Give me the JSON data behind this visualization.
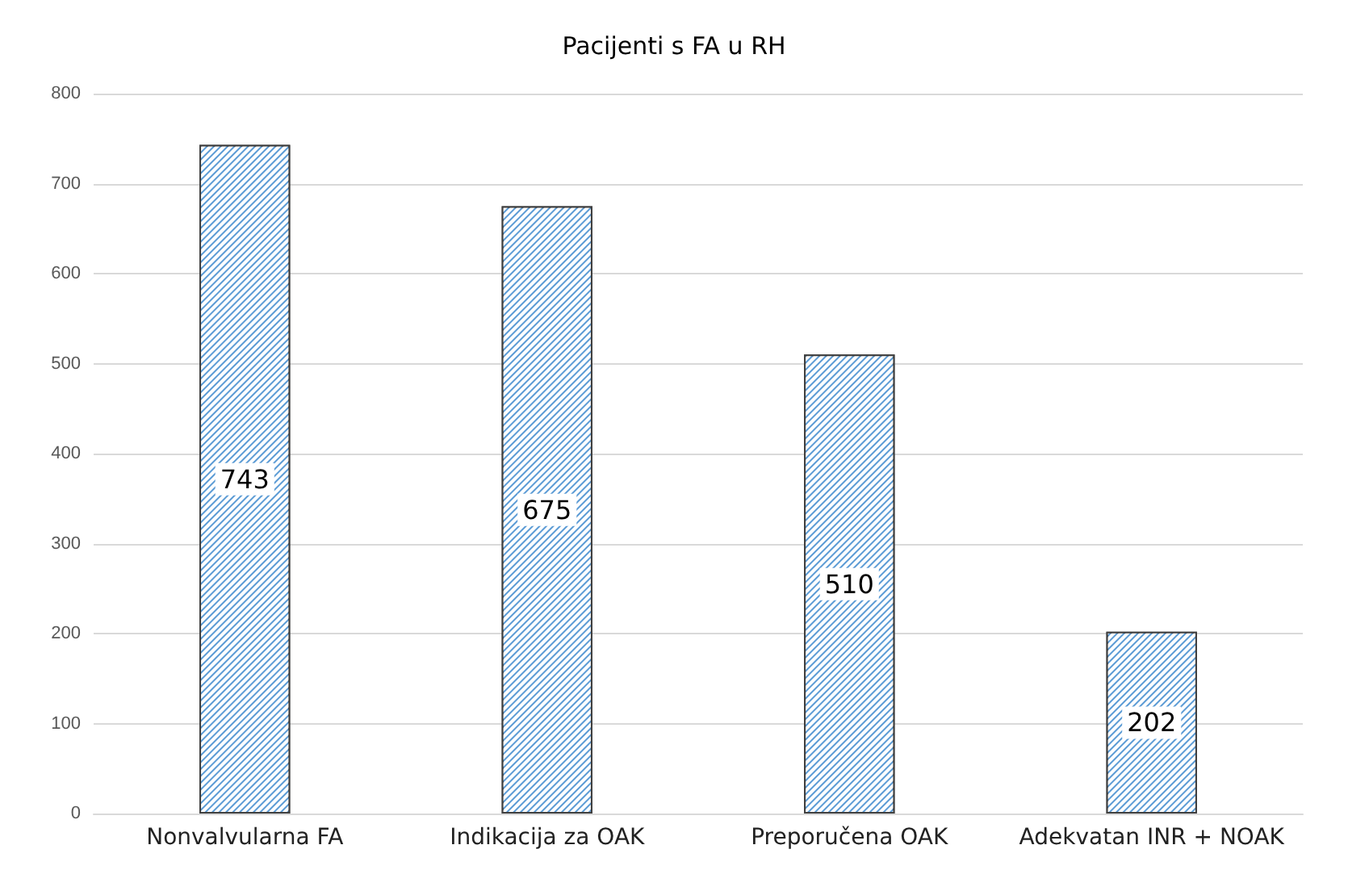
{
  "chart_data": {
    "type": "bar",
    "title": "Pacijenti s FA u RH",
    "categories": [
      "Nonvalvularna FA",
      "Indikacija za OAK",
      "Preporučena OAK",
      "Adekvatan INR + NOAK"
    ],
    "values": [
      743,
      675,
      510,
      202
    ],
    "color": "#5b9bd5",
    "ylim": [
      0,
      800
    ],
    "yticks": [
      0,
      100,
      200,
      300,
      400,
      500,
      600,
      700,
      800
    ],
    "grid": "y",
    "data_labels": true
  }
}
